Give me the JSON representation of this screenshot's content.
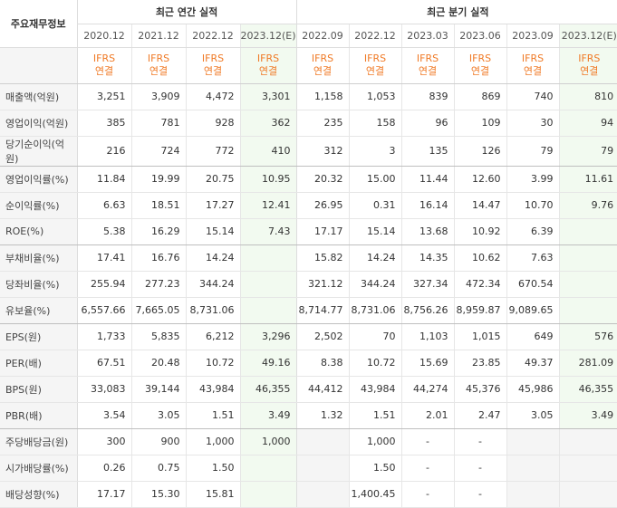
{
  "header": {
    "label": "주요재무정보",
    "annual_title": "최근 연간 실적",
    "quarterly_title": "최근 분기 실적"
  },
  "periods": [
    "2020.12",
    "2021.12",
    "2022.12",
    "2023.12(E)",
    "2022.09",
    "2022.12",
    "2023.03",
    "2023.06",
    "2023.09",
    "2023.12(E)"
  ],
  "standard": {
    "line1": "IFRS",
    "line2": "연결"
  },
  "rows": [
    {
      "label": "매출액(억원)",
      "values": [
        "3,251",
        "3,909",
        "4,472",
        "3,301",
        "1,158",
        "1,053",
        "839",
        "869",
        "740",
        "810"
      ]
    },
    {
      "label": "영업이익(억원)",
      "values": [
        "385",
        "781",
        "928",
        "362",
        "235",
        "158",
        "96",
        "109",
        "30",
        "94"
      ]
    },
    {
      "label": "당기순이익(억원)",
      "values": [
        "216",
        "724",
        "772",
        "410",
        "312",
        "3",
        "135",
        "126",
        "79",
        "79"
      ]
    },
    {
      "label": "영업이익률(%)",
      "values": [
        "11.84",
        "19.99",
        "20.75",
        "10.95",
        "20.32",
        "15.00",
        "11.44",
        "12.60",
        "3.99",
        "11.61"
      ]
    },
    {
      "label": "순이익률(%)",
      "values": [
        "6.63",
        "18.51",
        "17.27",
        "12.41",
        "26.95",
        "0.31",
        "16.14",
        "14.47",
        "10.70",
        "9.76"
      ]
    },
    {
      "label": "ROE(%)",
      "values": [
        "5.38",
        "16.29",
        "15.14",
        "7.43",
        "17.17",
        "15.14",
        "13.68",
        "10.92",
        "6.39",
        ""
      ]
    },
    {
      "label": "부채비율(%)",
      "values": [
        "17.41",
        "16.76",
        "14.24",
        "",
        "15.82",
        "14.24",
        "14.35",
        "10.62",
        "7.63",
        ""
      ]
    },
    {
      "label": "당좌비율(%)",
      "values": [
        "255.94",
        "277.23",
        "344.24",
        "",
        "321.12",
        "344.24",
        "327.34",
        "472.34",
        "670.54",
        ""
      ]
    },
    {
      "label": "유보율(%)",
      "values": [
        "6,557.66",
        "7,665.05",
        "8,731.06",
        "",
        "8,714.77",
        "8,731.06",
        "8,756.26",
        "8,959.87",
        "9,089.65",
        ""
      ]
    },
    {
      "label": "EPS(원)",
      "values": [
        "1,733",
        "5,835",
        "6,212",
        "3,296",
        "2,502",
        "70",
        "1,103",
        "1,015",
        "649",
        "576"
      ]
    },
    {
      "label": "PER(배)",
      "values": [
        "67.51",
        "20.48",
        "10.72",
        "49.16",
        "8.38",
        "10.72",
        "15.69",
        "23.85",
        "49.37",
        "281.09"
      ]
    },
    {
      "label": "BPS(원)",
      "values": [
        "33,083",
        "39,144",
        "43,984",
        "46,355",
        "44,412",
        "43,984",
        "44,274",
        "45,376",
        "45,986",
        "46,355"
      ]
    },
    {
      "label": "PBR(배)",
      "values": [
        "3.54",
        "3.05",
        "1.51",
        "3.49",
        "1.32",
        "1.51",
        "2.01",
        "2.47",
        "3.05",
        "3.49"
      ]
    },
    {
      "label": "주당배당금(원)",
      "values": [
        "300",
        "900",
        "1,000",
        "1,000",
        "",
        "1,000",
        "-",
        "-",
        "",
        ""
      ]
    },
    {
      "label": "시가배당률(%)",
      "values": [
        "0.26",
        "0.75",
        "1.50",
        "",
        "",
        "1.50",
        "-",
        "-",
        "",
        ""
      ]
    },
    {
      "label": "배당성향(%)",
      "values": [
        "17.17",
        "15.30",
        "15.81",
        "",
        "",
        "1,400.45",
        "-",
        "-",
        "",
        ""
      ]
    }
  ]
}
